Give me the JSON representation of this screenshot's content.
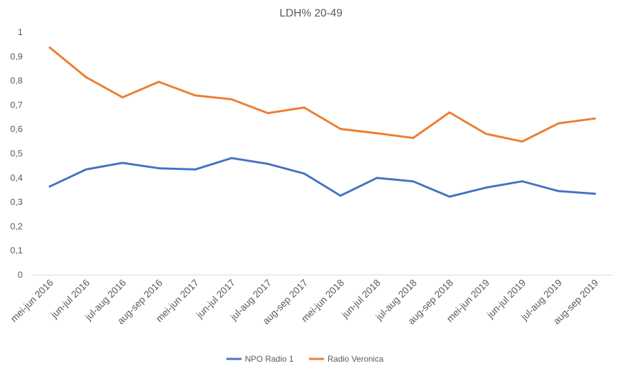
{
  "chart_data": {
    "type": "line",
    "title": "LDH% 20-49",
    "xlabel": "",
    "ylabel": "",
    "ylim": [
      0,
      1
    ],
    "yticks": [
      "0",
      "0,1",
      "0,2",
      "0,3",
      "0,4",
      "0,5",
      "0,6",
      "0,7",
      "0,8",
      "0,9",
      "1"
    ],
    "grid": false,
    "legend_position": "bottom",
    "categories": [
      "mei-jun 2016",
      "jun-jul 2016",
      "jul-aug 2016",
      "aug-sep 2016",
      "mei-jun 2017",
      "jun-jul 2017",
      "jul-aug 2017",
      "aug-sep 2017",
      "mei-jun 2018",
      "jun-jul 2018",
      "jul-aug 2018",
      "aug-sep 2018",
      "mei-jun 2019",
      "jun-jul 2019",
      "jul-aug 2019",
      "aug-sep 2019"
    ],
    "series": [
      {
        "name": "NPO Radio 1",
        "color": "#4472C4",
        "values": [
          0.365,
          0.435,
          0.462,
          0.44,
          0.435,
          0.482,
          0.458,
          0.418,
          0.327,
          0.4,
          0.386,
          0.323,
          0.36,
          0.386,
          0.346,
          0.335
        ]
      },
      {
        "name": "Radio Veronica",
        "color": "#ED7D31",
        "values": [
          0.937,
          0.815,
          0.732,
          0.796,
          0.74,
          0.724,
          0.667,
          0.69,
          0.602,
          0.584,
          0.565,
          0.67,
          0.582,
          0.55,
          0.625,
          0.645
        ]
      }
    ]
  }
}
